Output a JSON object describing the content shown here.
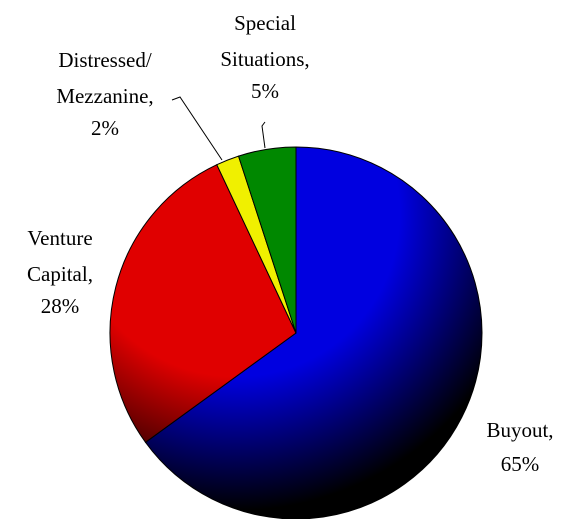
{
  "chart_data": {
    "type": "pie",
    "categories": [
      "Buyout,",
      "Venture Capital,",
      "Distressed/ Mezzanine,",
      "Special Situations,"
    ],
    "values": [
      65,
      28,
      2,
      5
    ],
    "value_labels": [
      "65%",
      "28%",
      "2%",
      "5%"
    ],
    "colors": [
      "#0000e0",
      "#e00000",
      "#f0f000",
      "#008800"
    ]
  }
}
